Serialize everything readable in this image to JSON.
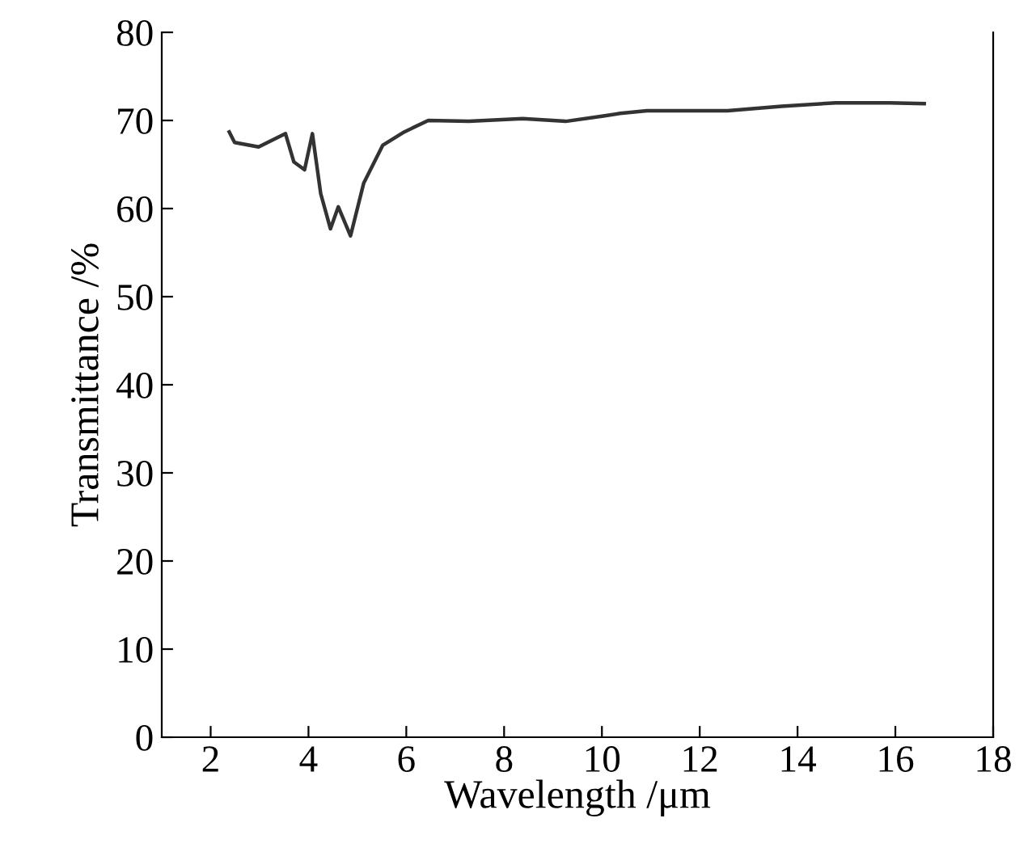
{
  "chart_data": {
    "type": "line",
    "xlabel": "Wavelength /μm",
    "ylabel": "Transmittance /%",
    "xlim": [
      1,
      18
    ],
    "xticks": [
      2,
      4,
      6,
      8,
      10,
      12,
      14,
      16,
      18
    ],
    "ylim": [
      0,
      80
    ],
    "yticks": [
      0,
      10,
      20,
      30,
      40,
      50,
      60,
      70,
      80
    ],
    "grid": false,
    "series": [
      {
        "color": "#333333",
        "x": [
          2.38,
          2.49,
          2.98,
          3.53,
          3.7,
          3.92,
          4.08,
          4.25,
          4.45,
          4.61,
          4.86,
          5.13,
          5.52,
          5.96,
          6.45,
          7.28,
          8.38,
          9.26,
          10.03,
          10.37,
          10.92,
          12.57,
          13.67,
          14.78,
          15.88,
          16.59
        ],
        "values": [
          68.7,
          67.5,
          67.0,
          68.5,
          65.3,
          64.4,
          68.5,
          61.7,
          57.7,
          60.2,
          56.9,
          62.9,
          67.2,
          68.7,
          70.0,
          69.9,
          70.2,
          69.9,
          70.5,
          70.8,
          71.1,
          71.1,
          71.6,
          72.0,
          72.0,
          71.9
        ]
      }
    ]
  }
}
